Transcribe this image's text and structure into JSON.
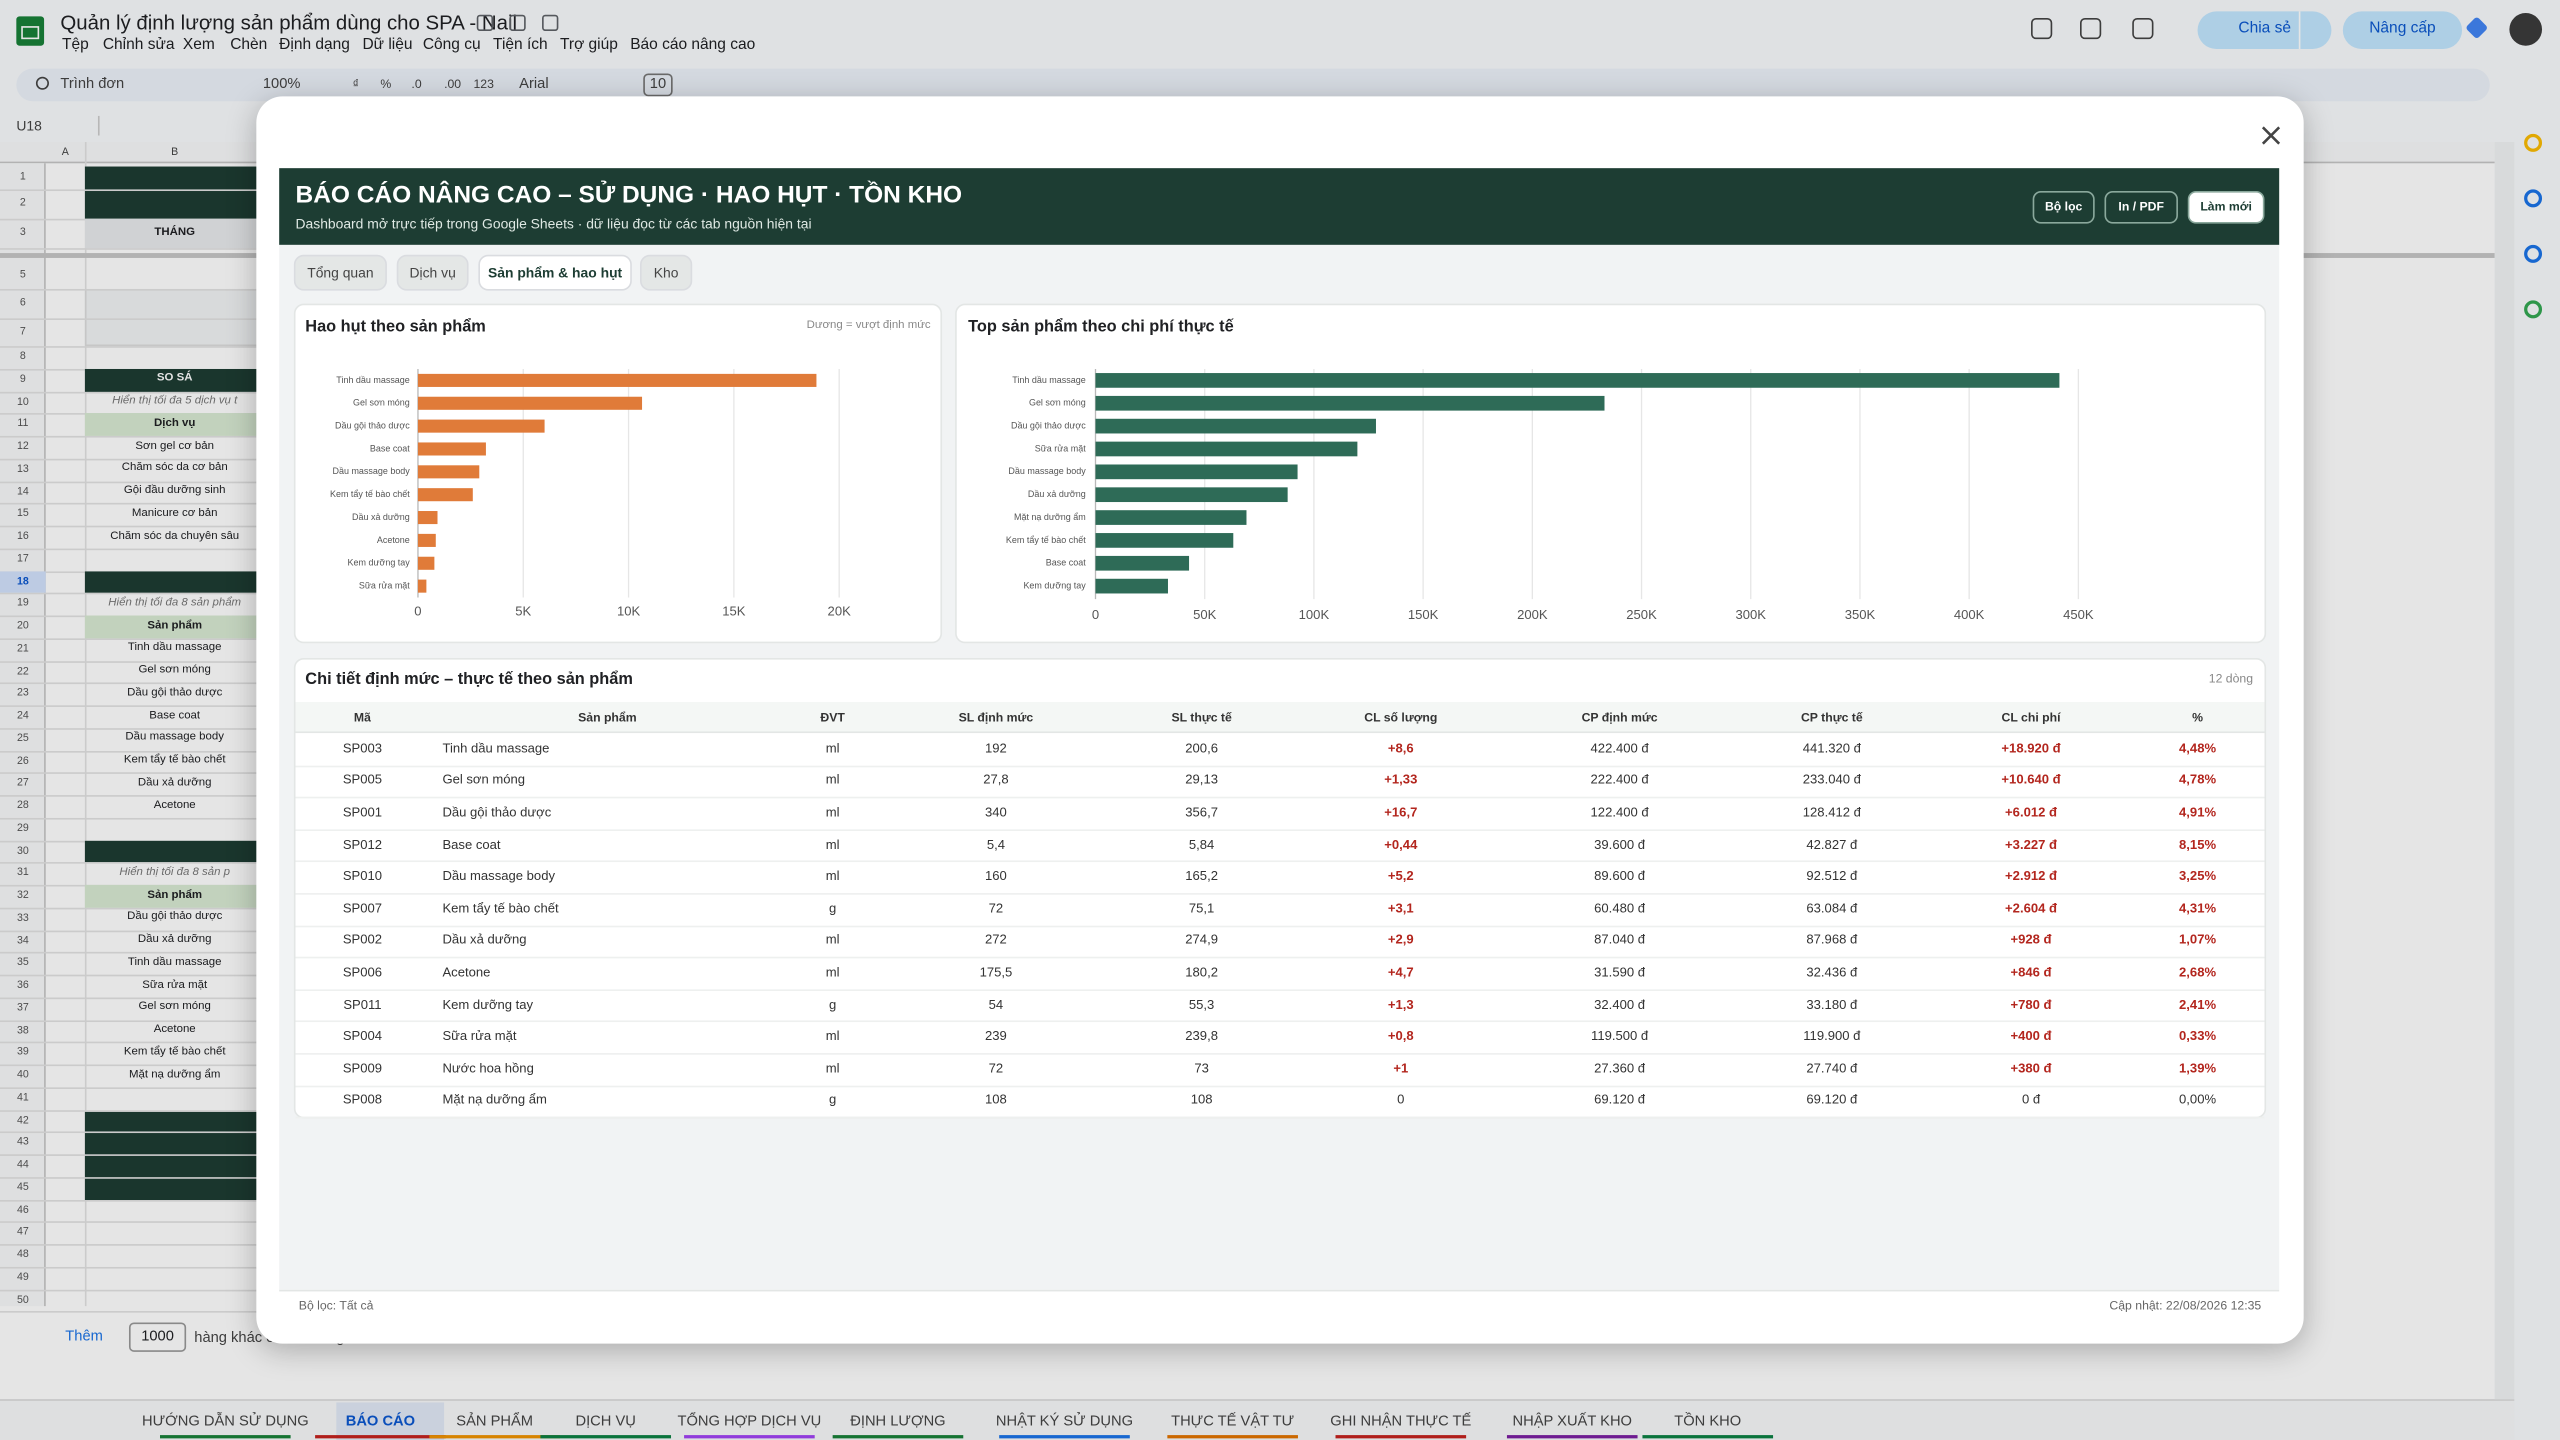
{
  "app": {
    "title": "Quản lý định lượng sản phẩm dùng cho SPA - Nail",
    "menu": [
      "Tệp",
      "Chỉnh sửa",
      "Xem",
      "Chèn",
      "Định dạng",
      "Dữ liệu",
      "Công cụ",
      "Tiện ích",
      "Trợ giúp",
      "Báo cáo nâng cao"
    ],
    "share": "Chia sẻ",
    "upgrade": "Nâng cấp",
    "toolbar": [
      "Trình đơn",
      "100%",
      "₫",
      "%",
      ".0",
      ".00",
      "123",
      "Arial",
      "10"
    ],
    "cell_ref": "U18"
  },
  "sheet": {
    "columns": [
      "A",
      "B"
    ],
    "row_numbers": [
      1,
      2,
      3,
      5,
      6,
      7,
      8,
      9,
      10,
      11,
      12,
      13,
      14,
      15,
      16,
      17,
      18,
      19,
      20,
      21,
      22,
      23,
      24,
      25,
      26,
      27,
      28,
      29,
      30,
      31,
      32,
      33,
      34,
      35,
      36,
      37,
      38,
      39,
      40,
      41,
      42,
      43,
      44,
      45,
      46,
      47,
      48,
      49,
      50
    ],
    "column_b": [
      null,
      null,
      "THÁNG",
      null,
      null,
      null,
      null,
      "SO SÁ",
      "Hiển thị tối đa 5 dịch vụ t",
      "Dịch vụ",
      "Sơn gel cơ bản",
      "Chăm sóc da cơ bản",
      "Gội đầu dưỡng sinh",
      "Manicure cơ bản",
      "Chăm sóc da chuyên sâu",
      null,
      null,
      "Hiển thị tối đa 8 sản phẩm",
      "Sản phẩm",
      "Tinh dầu massage",
      "Gel sơn móng",
      "Dầu gội thảo dược",
      "Base coat",
      "Dầu massage body",
      "Kem tẩy tế bào chết",
      "Dầu xả dưỡng",
      "Acetone",
      null,
      null,
      "Hiển thị tối đa 8 sản p",
      "Sản phẩm",
      "Dầu gội thảo dược",
      "Dầu xả dưỡng",
      "Tinh dầu massage",
      "Sữa rửa mặt",
      "Gel sơn móng",
      "Acetone",
      "Kem tẩy tế bào chết",
      "Mặt nạ dưỡng ẩm",
      null,
      null,
      null,
      null,
      null,
      null,
      null,
      null,
      null,
      null
    ],
    "add_rows": "Thêm",
    "add_count": "1000",
    "add_more": "hàng khác ở cuối trang",
    "tabs": [
      "HƯỚNG DẪN SỬ DỤNG",
      "BÁO CÁO",
      "SẢN PHẨM",
      "DỊCH VỤ",
      "TỔNG HỢP DỊCH VỤ",
      "ĐỊNH LƯỢNG",
      "NHẬT KÝ SỬ DỤNG",
      "THỰC TẾ VẬT TƯ",
      "GHI NHẬN THỰC TẾ",
      "NHẬP XUẤT KHO",
      "TỒN KHO"
    ]
  },
  "report": {
    "title": "BÁO CÁO NÂNG CAO – SỬ DỤNG · HAO HỤT · TỒN KHO",
    "subtitle": "Dashboard mở trực tiếp trong Google Sheets · dữ liệu đọc từ các tab nguồn hiện tại",
    "buttons": [
      "Bộ lọc",
      "In / PDF",
      "Làm mới"
    ],
    "tabs": [
      "Tổng quan",
      "Dịch vụ",
      "Sản phẩm & hao hụt",
      "Kho"
    ],
    "table": {
      "title": "Chi tiết định mức – thực tế theo sản phẩm",
      "count": "12 dòng",
      "columns": [
        "Mã",
        "Sản phẩm",
        "ĐVT",
        "SL định mức",
        "SL thực tế",
        "CL số lượng",
        "CP định mức",
        "CP thực tế",
        "CL chi phí",
        "%"
      ],
      "rows": [
        [
          "SP003",
          "Tinh dầu massage",
          "ml",
          "192",
          "200,6",
          "+8,6",
          "422.400 đ",
          "441.320 đ",
          "+18.920 đ",
          "4,48%"
        ],
        [
          "SP005",
          "Gel sơn móng",
          "ml",
          "27,8",
          "29,13",
          "+1,33",
          "222.400 đ",
          "233.040 đ",
          "+10.640 đ",
          "4,78%"
        ],
        [
          "SP001",
          "Dầu gội thảo dược",
          "ml",
          "340",
          "356,7",
          "+16,7",
          "122.400 đ",
          "128.412 đ",
          "+6.012 đ",
          "4,91%"
        ],
        [
          "SP012",
          "Base coat",
          "ml",
          "5,4",
          "5,84",
          "+0,44",
          "39.600 đ",
          "42.827 đ",
          "+3.227 đ",
          "8,15%"
        ],
        [
          "SP010",
          "Dầu massage body",
          "ml",
          "160",
          "165,2",
          "+5,2",
          "89.600 đ",
          "92.512 đ",
          "+2.912 đ",
          "3,25%"
        ],
        [
          "SP007",
          "Kem tẩy tế bào chết",
          "g",
          "72",
          "75,1",
          "+3,1",
          "60.480 đ",
          "63.084 đ",
          "+2.604 đ",
          "4,31%"
        ],
        [
          "SP002",
          "Dầu xả dưỡng",
          "ml",
          "272",
          "274,9",
          "+2,9",
          "87.040 đ",
          "87.968 đ",
          "+928 đ",
          "1,07%"
        ],
        [
          "SP006",
          "Acetone",
          "ml",
          "175,5",
          "180,2",
          "+4,7",
          "31.590 đ",
          "32.436 đ",
          "+846 đ",
          "2,68%"
        ],
        [
          "SP011",
          "Kem dưỡng tay",
          "g",
          "54",
          "55,3",
          "+1,3",
          "32.400 đ",
          "33.180 đ",
          "+780 đ",
          "2,41%"
        ],
        [
          "SP004",
          "Sữa rửa mặt",
          "ml",
          "239",
          "239,8",
          "+0,8",
          "119.500 đ",
          "119.900 đ",
          "+400 đ",
          "0,33%"
        ],
        [
          "SP009",
          "Nước hoa hồng",
          "ml",
          "72",
          "73",
          "+1",
          "27.360 đ",
          "27.740 đ",
          "+380 đ",
          "1,39%"
        ],
        [
          "SP008",
          "Mặt nạ dưỡng ẩm",
          "g",
          "108",
          "108",
          "0",
          "69.120 đ",
          "69.120 đ",
          "0 đ",
          "0,00%"
        ]
      ]
    },
    "footer_filter": "Bộ lọc: Tất cả",
    "footer_updated": "Cập nhật: 22/08/2026 12:35"
  },
  "chart_data": [
    {
      "type": "bar",
      "orientation": "horizontal",
      "title": "Hao hụt theo sản phẩm",
      "note": "Dương = vượt định mức",
      "categories": [
        "Tinh dầu massage",
        "Gel sơn móng",
        "Dầu gội thảo dược",
        "Base coat",
        "Dầu massage body",
        "Kem tẩy tế bào chết",
        "Dầu xả dưỡng",
        "Acetone",
        "Kem dưỡng tay",
        "Sữa rửa mặt"
      ],
      "values": [
        18920,
        10640,
        6012,
        3227,
        2912,
        2604,
        928,
        846,
        780,
        400
      ],
      "color": "#e07b39",
      "xlim": [
        0,
        20000
      ],
      "xticks": [
        0,
        {
          "value": 5000,
          "label": "5K"
        },
        {
          "value": 10000,
          "label": "10K"
        },
        {
          "value": 15000,
          "label": "15K"
        },
        {
          "value": 20000,
          "label": "20K"
        }
      ],
      "grid": true
    },
    {
      "type": "bar",
      "orientation": "horizontal",
      "title": "Top sản phẩm theo chi phí thực tế",
      "categories": [
        "Tinh dầu massage",
        "Gel sơn móng",
        "Dầu gội thảo dược",
        "Sữa rửa mặt",
        "Dầu massage body",
        "Dầu xả dưỡng",
        "Mặt nạ dưỡng ẩm",
        "Kem tẩy tế bào chết",
        "Base coat",
        "Kem dưỡng tay"
      ],
      "values": [
        441320,
        233040,
        128412,
        119900,
        92512,
        87968,
        69120,
        63084,
        42827,
        33180
      ],
      "color": "#2e6b57",
      "xlim": [
        0,
        450000
      ],
      "xticks": [
        0,
        {
          "value": 50000,
          "label": "50K"
        },
        {
          "value": 100000,
          "label": "100K"
        },
        {
          "value": 150000,
          "label": "150K"
        },
        {
          "value": 200000,
          "label": "200K"
        },
        {
          "value": 250000,
          "label": "250K"
        },
        {
          "value": 300000,
          "label": "300K"
        },
        {
          "value": 350000,
          "label": "350K"
        },
        {
          "value": 400000,
          "label": "400K"
        },
        {
          "value": 450000,
          "label": "450K"
        }
      ],
      "grid": true
    }
  ]
}
